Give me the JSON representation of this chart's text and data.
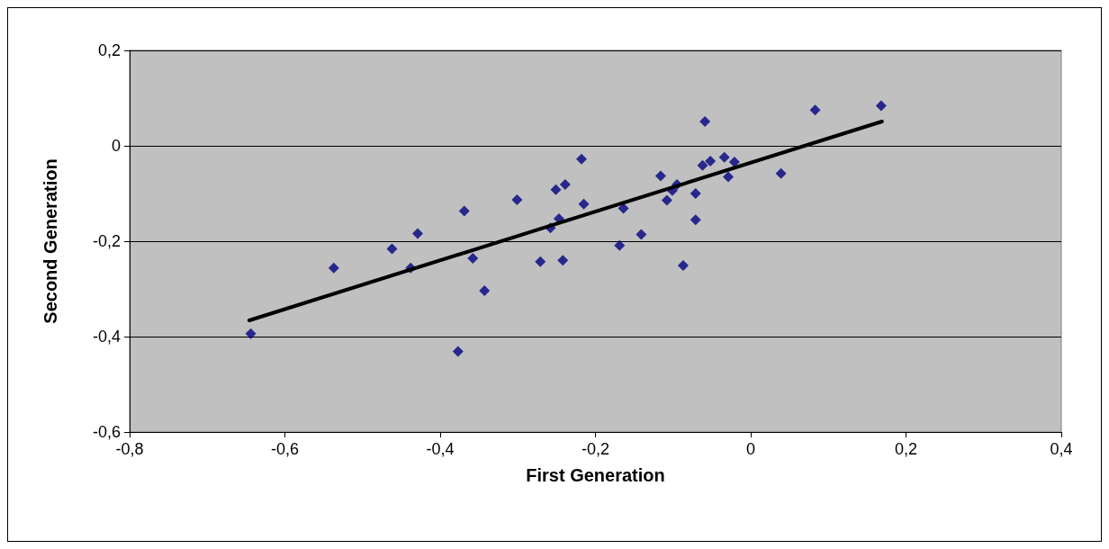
{
  "chart_data": {
    "type": "scatter",
    "xlabel": "First Generation",
    "ylabel": "Second Generation",
    "xlim": [
      -0.8,
      0.4
    ],
    "xticks": [
      {
        "value": -0.8,
        "label": "-0,8"
      },
      {
        "value": -0.6,
        "label": "-0,6"
      },
      {
        "value": -0.4,
        "label": "-0,4"
      },
      {
        "value": -0.2,
        "label": "-0,2"
      },
      0,
      {
        "value": 0.2,
        "label": "0,2"
      },
      {
        "value": 0.4,
        "label": "0,4"
      }
    ],
    "ylim": [
      -0.6,
      0.2
    ],
    "yticks": [
      {
        "value": -0.6,
        "label": "-0,6"
      },
      {
        "value": -0.4,
        "label": "-0,4"
      },
      {
        "value": -0.2,
        "label": "-0,2"
      },
      0,
      {
        "value": 0.2,
        "label": "0,2"
      }
    ],
    "grid": "y",
    "marker": "diamond",
    "series": [
      {
        "color": "#000080",
        "x": [
          -0.644,
          -0.537,
          -0.462,
          -0.429,
          -0.438,
          -0.369,
          -0.358,
          -0.343,
          -0.377,
          -0.301,
          -0.271,
          -0.258,
          -0.251,
          -0.247,
          -0.239,
          -0.242,
          -0.218,
          -0.215,
          -0.169,
          -0.164,
          -0.141,
          -0.116,
          -0.108,
          -0.101,
          -0.095,
          -0.087,
          -0.071,
          -0.071,
          -0.062,
          -0.059,
          -0.052,
          -0.034,
          -0.029,
          -0.021,
          0.039,
          0.083,
          0.168
        ],
        "values": [
          -0.394,
          -0.256,
          -0.216,
          -0.184,
          -0.256,
          -0.137,
          -0.236,
          -0.304,
          -0.431,
          -0.113,
          -0.243,
          -0.172,
          -0.092,
          -0.153,
          -0.081,
          -0.24,
          -0.028,
          -0.122,
          -0.209,
          -0.131,
          -0.186,
          -0.063,
          -0.114,
          -0.094,
          -0.081,
          -0.251,
          -0.1,
          -0.155,
          -0.041,
          0.051,
          -0.032,
          -0.024,
          -0.065,
          -0.034,
          -0.058,
          0.075,
          0.084
        ]
      },
      {
        "type": "line",
        "color": "#000000",
        "marker": "none",
        "line_style": "solid",
        "x": [
          -0.646,
          0.169
        ],
        "values": [
          -0.366,
          0.051
        ]
      }
    ]
  }
}
